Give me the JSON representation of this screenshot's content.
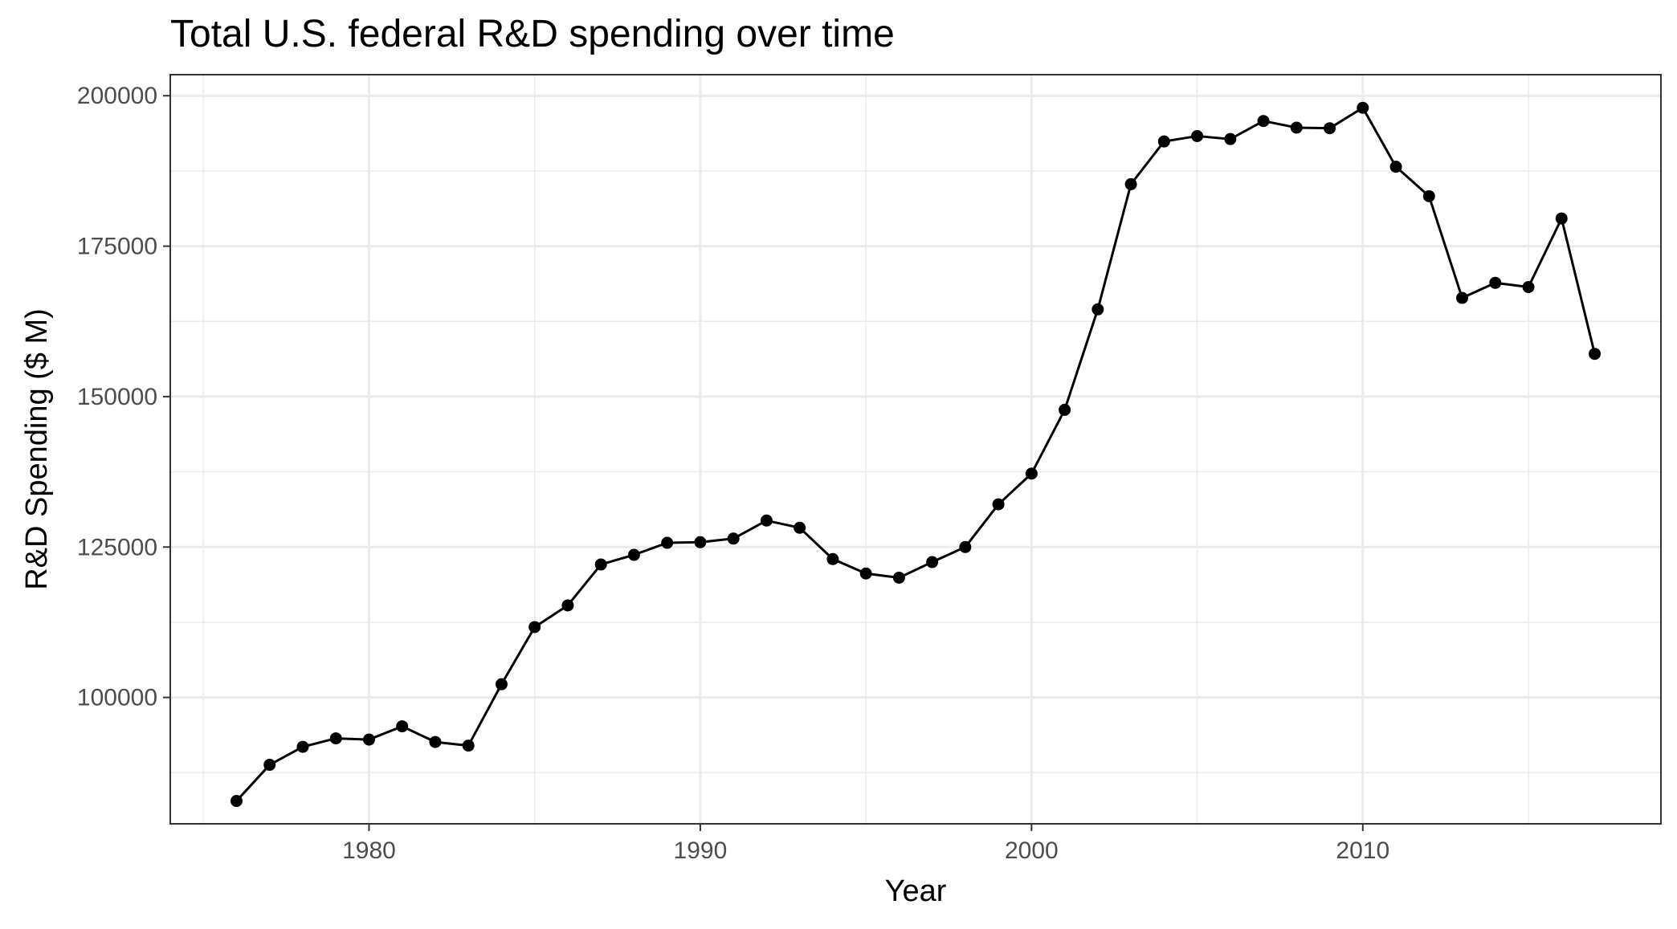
{
  "chart_data": {
    "type": "line",
    "title": "Total U.S. federal R&D spending over time",
    "xlabel": "Year",
    "ylabel": "R&D Spending ($ M)",
    "xlim": [
      1974.0,
      2019.0
    ],
    "ylim": [
      79000,
      203500
    ],
    "x_ticks": [
      1980,
      1990,
      2000,
      2010
    ],
    "x_tick_labels": [
      "1980",
      "1990",
      "2000",
      "2010"
    ],
    "x_minor_ticks": [
      1975,
      1985,
      1995,
      2005,
      2015
    ],
    "y_ticks": [
      100000,
      125000,
      150000,
      175000,
      200000
    ],
    "y_tick_labels": [
      "100000",
      "125000",
      "150000",
      "175000",
      "200000"
    ],
    "y_minor_ticks": [
      87500,
      112500,
      137500,
      162500,
      187500
    ],
    "grid": true,
    "markers": true,
    "series_color": "#000000",
    "grid_color": "#ebebeb",
    "x": [
      1976,
      1977,
      1978,
      1979,
      1980,
      1981,
      1982,
      1983,
      1984,
      1985,
      1986,
      1987,
      1988,
      1989,
      1990,
      1991,
      1992,
      1993,
      1994,
      1995,
      1996,
      1997,
      1998,
      1999,
      2000,
      2001,
      2002,
      2003,
      2004,
      2005,
      2006,
      2007,
      2008,
      2009,
      2010,
      2011,
      2012,
      2013,
      2014,
      2015,
      2016,
      2017
    ],
    "y": [
      82800,
      88800,
      91800,
      93200,
      93000,
      95200,
      92600,
      92000,
      102200,
      111700,
      115300,
      122100,
      123700,
      125700,
      125800,
      126400,
      129400,
      128200,
      123000,
      120600,
      119900,
      122500,
      125000,
      132100,
      137200,
      147800,
      164500,
      185300,
      192400,
      193300,
      192800,
      195800,
      194700,
      194600,
      198000,
      188200,
      183300,
      166400,
      168900,
      168200,
      179600,
      157100
    ]
  }
}
